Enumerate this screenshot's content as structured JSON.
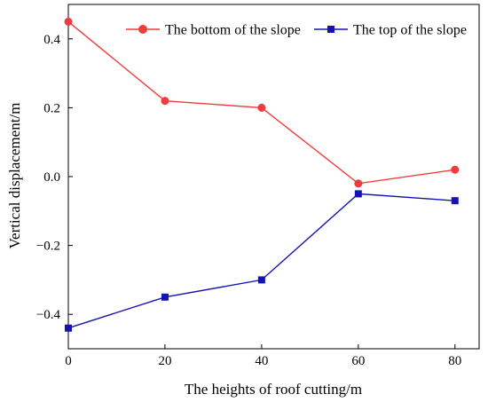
{
  "chart_data": {
    "type": "line",
    "xlabel": "The heights of roof cutting/m",
    "ylabel": "Vertical displacement/m",
    "xlim": [
      0,
      85
    ],
    "ylim": [
      -0.5,
      0.5
    ],
    "x_ticks": [
      0,
      20,
      40,
      60,
      80
    ],
    "y_ticks": [
      -0.4,
      -0.2,
      0.0,
      0.2,
      0.4
    ],
    "x_tick_labels": [
      "0",
      "20",
      "40",
      "60",
      "80"
    ],
    "y_tick_labels": [
      "−0.4",
      "−0.2",
      "0.0",
      "0.2",
      "0.4"
    ],
    "grid": false,
    "legend_position": "top-right",
    "x": [
      0,
      20,
      40,
      60,
      80
    ],
    "series": [
      {
        "name": "The bottom of the slope",
        "color": "#f03c3c",
        "marker": "circle",
        "values": [
          0.45,
          0.22,
          0.2,
          -0.02,
          0.02
        ]
      },
      {
        "name": "The top of the slope",
        "color": "#1414b4",
        "marker": "square",
        "values": [
          -0.44,
          -0.35,
          -0.3,
          -0.05,
          -0.07
        ]
      }
    ]
  }
}
